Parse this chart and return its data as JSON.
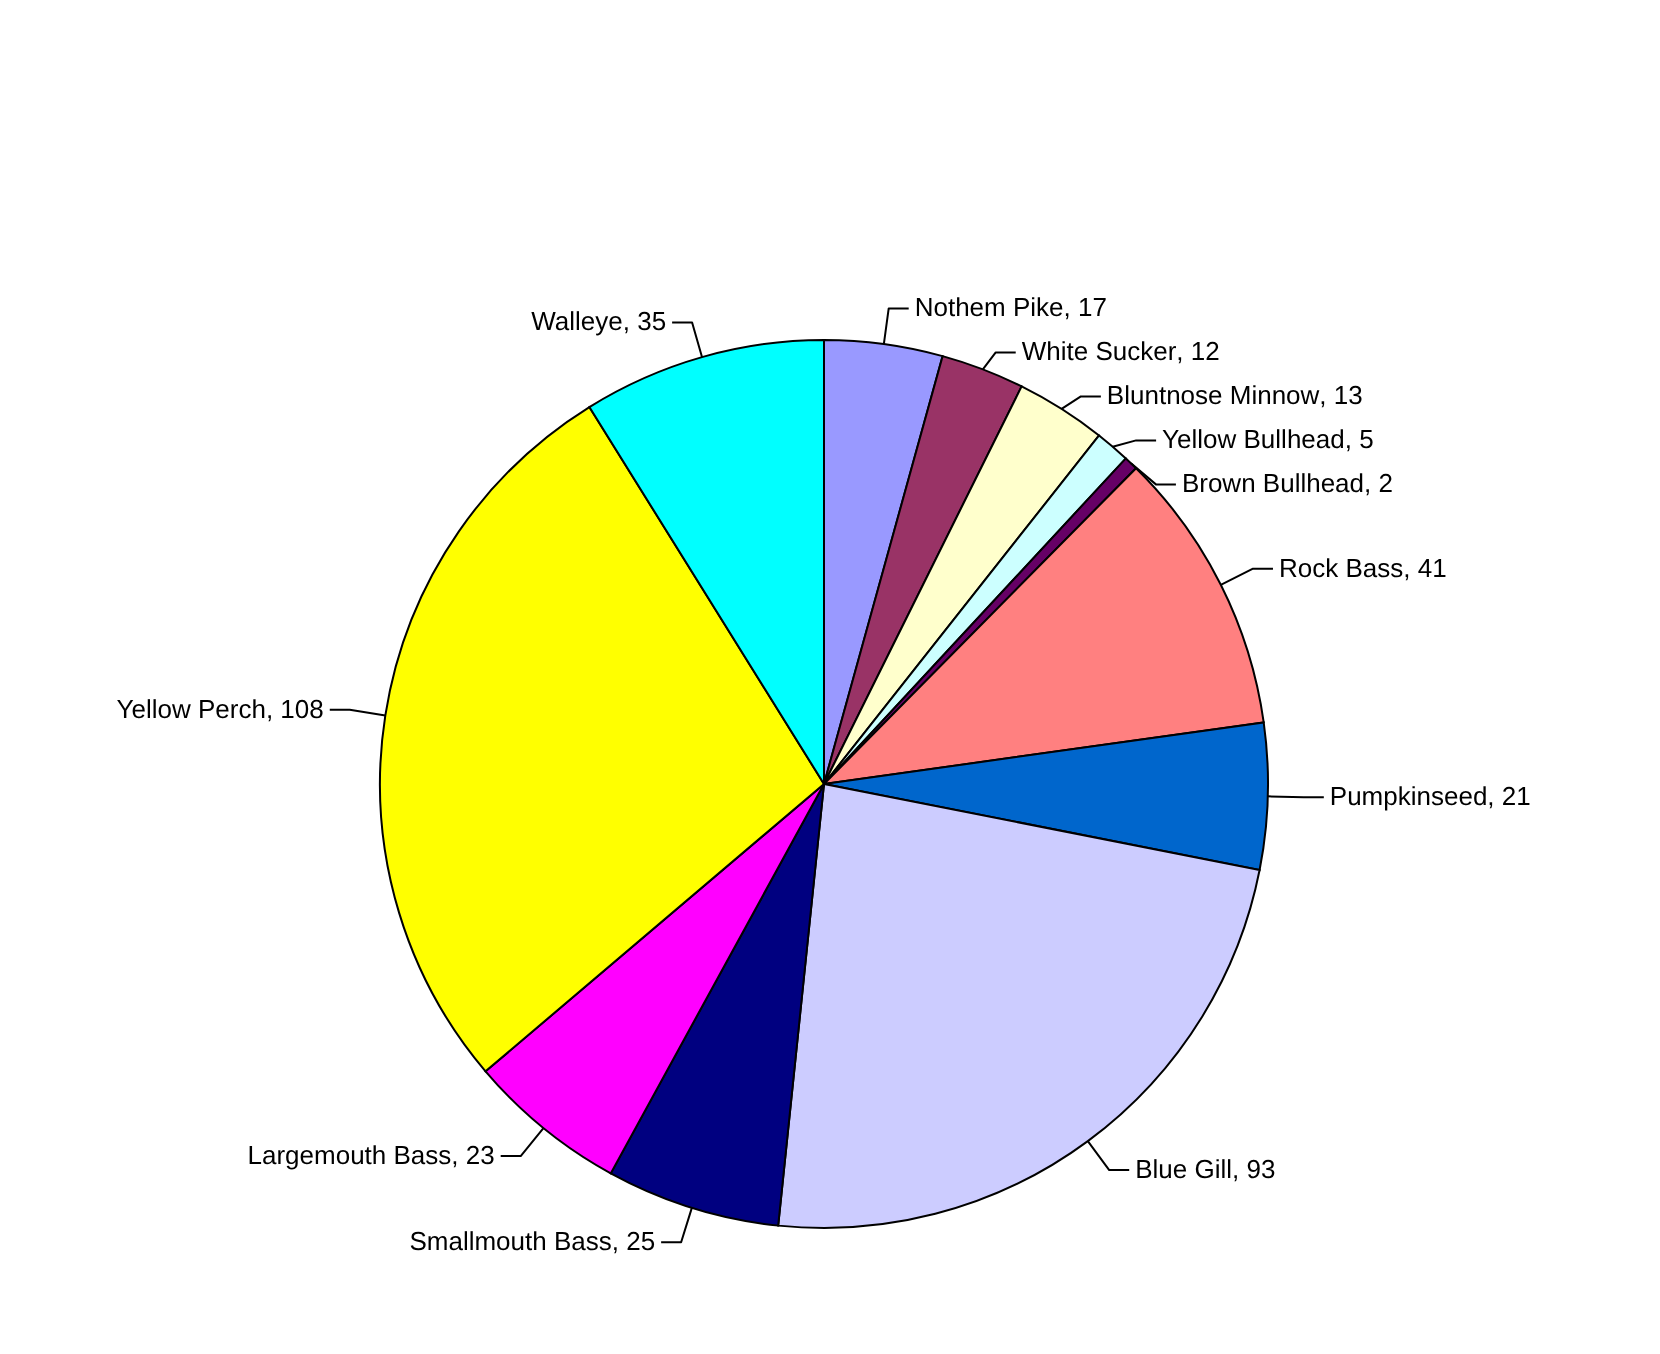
{
  "chart_data": {
    "type": "pie",
    "categories": [
      "Nothem Pike",
      "White Sucker",
      "Bluntnose Minnow",
      "Yellow Bullhead",
      "Brown Bullhead",
      "Rock Bass",
      "Pumpkinseed",
      "Blue Gill",
      "Smallmouth Bass",
      "Largemouth Bass",
      "Yellow Perch",
      "Walleye"
    ],
    "values": [
      17,
      12,
      13,
      5,
      2,
      41,
      21,
      93,
      25,
      23,
      108,
      35
    ],
    "value_labels": [
      ", 17",
      ", 12",
      ", 13",
      ", 5",
      ", 2",
      ", 41",
      ", 21",
      ", 93",
      ", 25",
      ", 23",
      ", 108",
      ", 35"
    ],
    "colors": [
      "#9999ff",
      "#993366",
      "#ffffcc",
      "#ccffff",
      "#660066",
      "#ff8080",
      "#0066cc",
      "#ccccff",
      "#000080",
      "#ff00ff",
      "#ffff00",
      "#00ffff"
    ]
  }
}
